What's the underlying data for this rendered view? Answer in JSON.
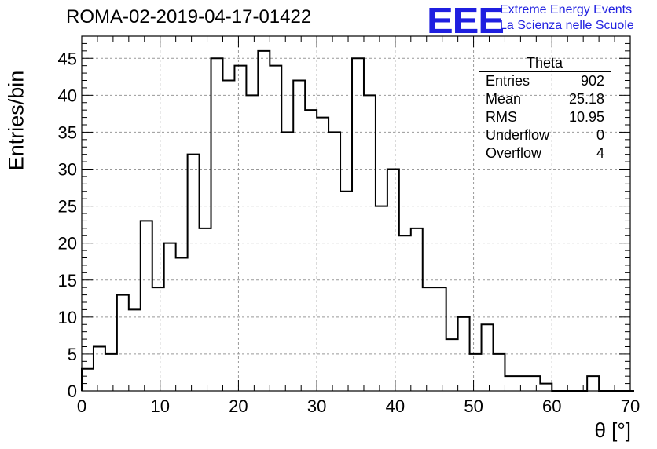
{
  "header": {
    "title": "ROMA-02-2019-04-17-01422",
    "logo": "EEE",
    "logo_line1": "Extreme Energy Events",
    "logo_line2": "La Scienza nelle Scuole"
  },
  "stats": {
    "title": "Theta",
    "rows": [
      {
        "label": "Entries",
        "value": "902"
      },
      {
        "label": "Mean",
        "value": "25.18"
      },
      {
        "label": "RMS",
        "value": "10.95"
      },
      {
        "label": "Underflow",
        "value": "0"
      },
      {
        "label": "Overflow",
        "value": "4"
      }
    ]
  },
  "colors": {
    "line": "#000000",
    "grid": "#999999",
    "logo": "#1f1fe0"
  },
  "chart_data": {
    "type": "histogram",
    "xlabel": "θ [°]",
    "ylabel": "Entries/bin",
    "xlim": [
      0,
      70
    ],
    "ylim": [
      0,
      48
    ],
    "grid": true,
    "bin_width": 1.5,
    "x_ticks": [
      0,
      10,
      20,
      30,
      40,
      50,
      60,
      70
    ],
    "y_ticks": [
      0,
      5,
      10,
      15,
      20,
      25,
      30,
      35,
      40,
      45
    ],
    "values": [
      3,
      6,
      5,
      13,
      11,
      23,
      14,
      20,
      18,
      32,
      22,
      45,
      42,
      44,
      40,
      46,
      44,
      35,
      42,
      38,
      37,
      35,
      27,
      45,
      40,
      25,
      30,
      21,
      22,
      14,
      14,
      7,
      10,
      5,
      9,
      5,
      2,
      2,
      2,
      1,
      0,
      0,
      0,
      2,
      0,
      0,
      0
    ]
  }
}
